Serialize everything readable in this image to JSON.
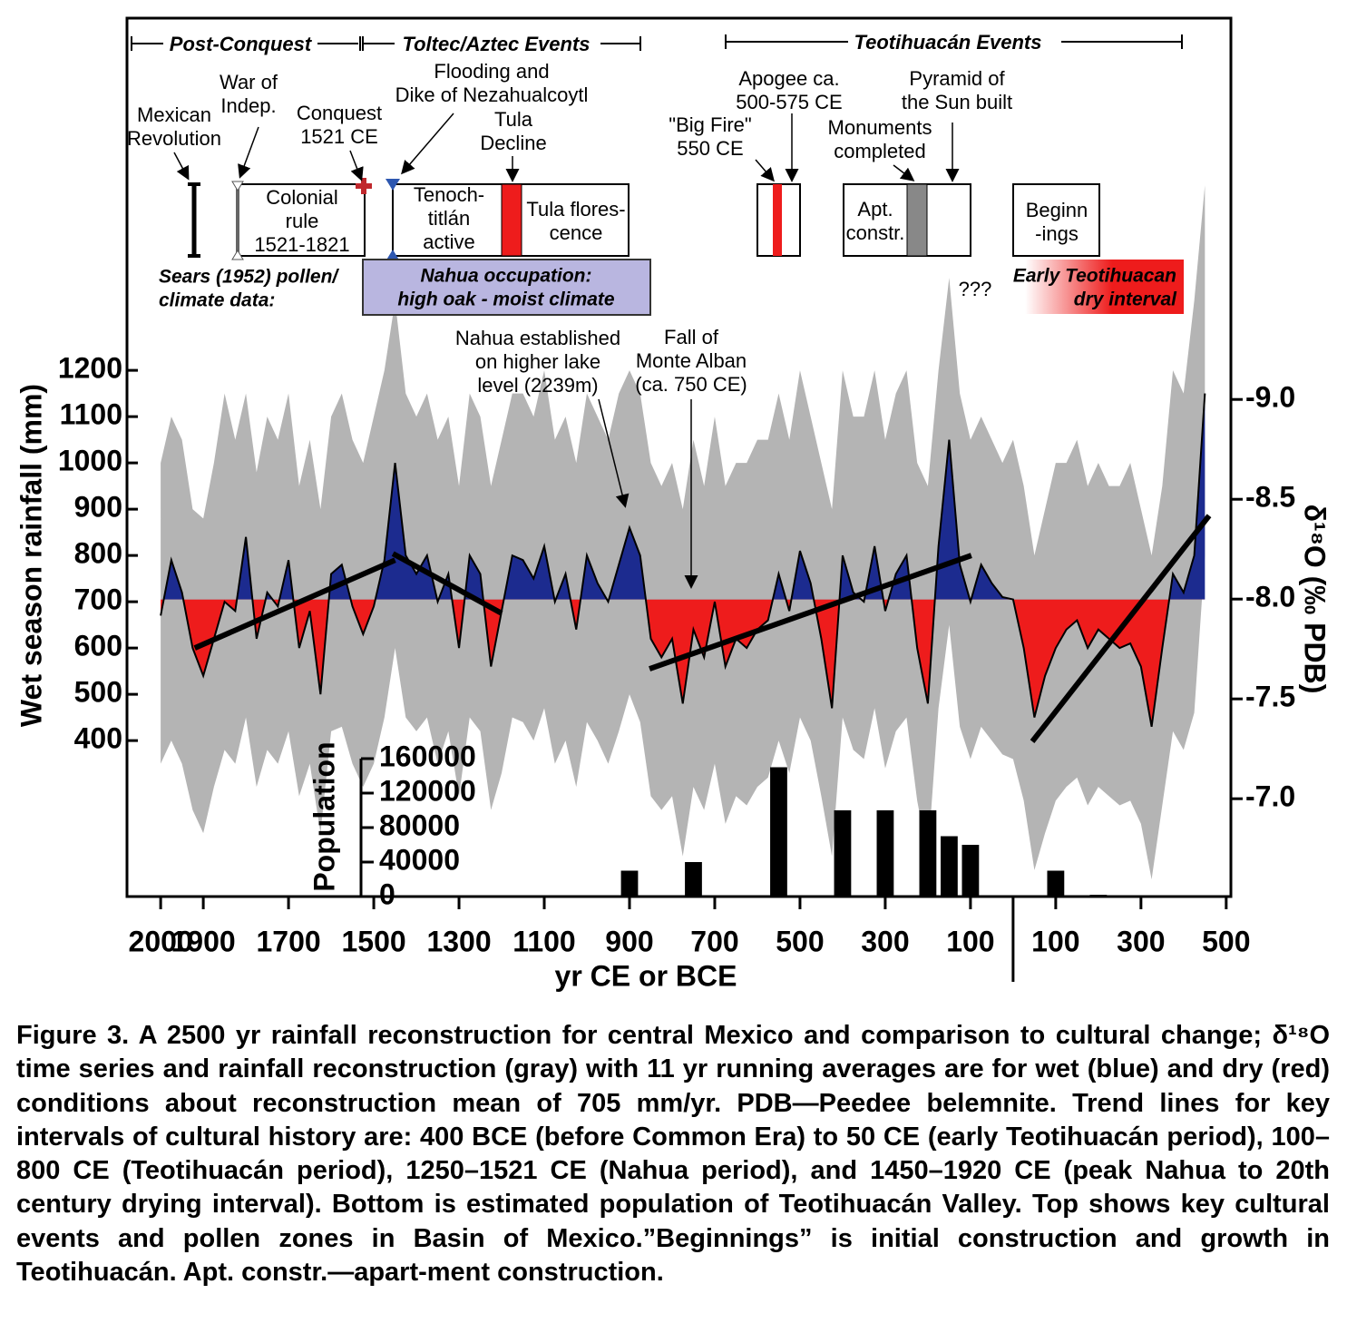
{
  "caption": "Figure 3. A 2500 yr rainfall reconstruction for central Mexico and comparison to cultural change; δ¹⁸O time series and rainfall reconstruction (gray) with 11 yr running averages are for wet (blue) and dry (red) conditions about reconstruction mean of 705 mm/yr. PDB—Peedee belemnite. Trend lines for key intervals of cultural history are: 400 BCE (before Common Era) to 50 CE (early Teotihuacán period), 100–800 CE (Teotihuacán period), 1250–1521 CE (Nahua period), and 1450–1920 CE (peak Nahua to 20th century drying interval). Bottom is estimated population of Teotihuacán Valley. Top shows key cultural events and pollen zones in Basin of Mexico.”Beginnings” is initial construction and growth in Teotihuacán. Apt. constr.—apart-ment construction.",
  "chart_data": [
    {
      "type": "area",
      "xlabel": "yr CE or BCE",
      "ylabel": "Wet season rainfall (mm)",
      "y2label": "δ¹⁸O (‰ PDB)",
      "xlim": [
        2079,
        -511
      ],
      "xticks": [
        2000,
        1900,
        1700,
        1500,
        1300,
        1100,
        900,
        700,
        500,
        300,
        100,
        {
          "value": -100,
          "label": "100"
        },
        {
          "value": -300,
          "label": "300"
        },
        {
          "value": -500,
          "label": "500"
        }
      ],
      "ylim": [
        63,
        1961
      ],
      "yticks": [
        400,
        500,
        600,
        700,
        800,
        900,
        1000,
        1100,
        1200
      ],
      "y2lim": [
        -6.51,
        -10.91
      ],
      "y2ticks": [
        {
          "value": -9.0,
          "label": "-9.0"
        },
        -8.5,
        {
          "value": -8.0,
          "label": "-8.0"
        },
        -7.5,
        {
          "value": -7.0,
          "label": "-7.0"
        }
      ],
      "baseline": 705,
      "wet_color": "#1c2b8f",
      "dry_color": "#ee1c1c",
      "x": [
        2000,
        1975,
        1950,
        1925,
        1900,
        1875,
        1850,
        1825,
        1800,
        1775,
        1750,
        1725,
        1700,
        1675,
        1650,
        1625,
        1600,
        1575,
        1550,
        1525,
        1500,
        1475,
        1450,
        1425,
        1400,
        1375,
        1350,
        1325,
        1300,
        1275,
        1250,
        1225,
        1200,
        1175,
        1150,
        1125,
        1100,
        1075,
        1050,
        1025,
        1000,
        975,
        950,
        925,
        900,
        875,
        850,
        825,
        800,
        775,
        750,
        725,
        700,
        675,
        650,
        625,
        600,
        575,
        550,
        525,
        500,
        475,
        450,
        425,
        400,
        375,
        350,
        325,
        300,
        275,
        250,
        225,
        200,
        175,
        150,
        125,
        100,
        75,
        50,
        25,
        0,
        -25,
        -50,
        -75,
        -100,
        -125,
        -150,
        -175,
        -200,
        -225,
        -250,
        -275,
        -300,
        -325,
        -350,
        -375,
        -400,
        -425,
        -450
      ],
      "values": [
        670,
        790,
        720,
        600,
        540,
        620,
        700,
        680,
        840,
        620,
        720,
        690,
        790,
        600,
        680,
        500,
        760,
        780,
        690,
        630,
        690,
        790,
        1000,
        800,
        760,
        800,
        700,
        760,
        600,
        800,
        760,
        560,
        680,
        800,
        790,
        750,
        820,
        700,
        760,
        640,
        800,
        740,
        700,
        780,
        860,
        800,
        620,
        580,
        620,
        480,
        640,
        580,
        700,
        560,
        620,
        600,
        640,
        660,
        760,
        680,
        810,
        740,
        620,
        470,
        800,
        720,
        700,
        820,
        680,
        760,
        800,
        600,
        480,
        820,
        1050,
        780,
        700,
        780,
        740,
        710,
        705,
        600,
        450,
        540,
        600,
        640,
        660,
        600,
        640,
        620,
        600,
        610,
        560,
        430,
        600,
        760,
        720,
        800,
        1150
      ],
      "band": {
        "color": "#b4b4b4",
        "upper": [
          1000,
          1100,
          1050,
          900,
          880,
          1000,
          1150,
          1050,
          1150,
          980,
          1100,
          1050,
          1150,
          950,
          1050,
          900,
          1100,
          1150,
          1050,
          1000,
          1100,
          1200,
          1350,
          1150,
          1100,
          1150,
          1050,
          1100,
          950,
          1150,
          1100,
          950,
          1050,
          1150,
          1150,
          1100,
          1200,
          1050,
          1100,
          1000,
          1150,
          1100,
          1050,
          1150,
          1200,
          1150,
          1000,
          950,
          1000,
          900,
          1050,
          950,
          1100,
          950,
          1000,
          1000,
          1050,
          1050,
          1150,
          1050,
          1200,
          1100,
          1000,
          900,
          1200,
          1100,
          1100,
          1200,
          1050,
          1150,
          1200,
          1000,
          950,
          1200,
          1400,
          1150,
          1050,
          1100,
          1050,
          1000,
          1050,
          950,
          800,
          900,
          1000,
          1000,
          1050,
          950,
          1000,
          950,
          950,
          1000,
          900,
          800,
          950,
          1200,
          1150,
          1350,
          1600
        ],
        "lower": [
          350,
          400,
          350,
          250,
          200,
          300,
          380,
          350,
          450,
          300,
          380,
          350,
          420,
          280,
          350,
          200,
          420,
          430,
          350,
          300,
          350,
          450,
          600,
          450,
          420,
          450,
          350,
          420,
          280,
          450,
          420,
          250,
          330,
          450,
          440,
          400,
          470,
          350,
          400,
          300,
          440,
          400,
          350,
          420,
          500,
          440,
          280,
          250,
          280,
          150,
          300,
          250,
          350,
          220,
          280,
          260,
          300,
          320,
          400,
          330,
          450,
          400,
          280,
          150,
          450,
          380,
          360,
          470,
          340,
          420,
          450,
          270,
          150,
          470,
          650,
          430,
          360,
          430,
          400,
          370,
          360,
          270,
          120,
          200,
          270,
          300,
          320,
          260,
          300,
          280,
          260,
          270,
          220,
          100,
          260,
          420,
          380,
          460,
          800
        ]
      },
      "trend_lines": [
        {
          "x": [
            1920,
            1450
          ],
          "values": [
            600,
            790
          ]
        },
        {
          "x": [
            1455,
            1200
          ],
          "values": [
            804,
            675
          ]
        },
        {
          "x": [
            853,
            98
          ],
          "values": [
            555,
            800
          ]
        },
        {
          "x": [
            -45,
            -460
          ],
          "values": [
            398,
            886
          ]
        }
      ],
      "annotations": [
        [
          "Post-Conquest"
        ],
        [
          "Toltec/Aztec Events"
        ],
        [
          "Teotihuacán Events"
        ],
        [
          "Mexican",
          "Revolution"
        ],
        [
          "War of",
          "Indep."
        ],
        [
          "Conquest",
          "1521 CE"
        ],
        [
          "Flooding and",
          "Dike of Nezahualcoytl"
        ],
        [
          "Tula",
          "Decline"
        ],
        [
          "Colonial",
          "rule",
          "1521-1821"
        ],
        [
          "Tenoch-",
          "titlán",
          "active"
        ],
        [
          "Tula flores-",
          "cence"
        ],
        [
          "Apogee ca.",
          "500-575 CE"
        ],
        [
          "\"Big Fire\"",
          "550 CE"
        ],
        [
          "Pyramid of",
          "the Sun built"
        ],
        [
          "Monuments",
          "completed"
        ],
        [
          "Apt.",
          "constr."
        ],
        [
          "Beginn",
          "-ings"
        ],
        [
          "Sears (1952) pollen/",
          "climate data:"
        ],
        [
          "Nahua occupation:",
          "high oak - moist climate"
        ],
        [
          "???"
        ],
        [
          "Early Teotihuacan",
          "dry interval"
        ],
        [
          "Nahua established",
          "on higher lake",
          "level (2239m)"
        ],
        [
          "Fall of",
          "Monte Alban",
          "(ca. 750 CE)"
        ]
      ]
    },
    {
      "type": "bar",
      "ylabel": "Population",
      "ylim": [
        0,
        160000
      ],
      "yticks": [
        0,
        40000,
        80000,
        120000,
        160000
      ],
      "color": "#000000",
      "x": [
        900,
        750,
        550,
        400,
        300,
        200,
        150,
        100,
        -100,
        -200
      ],
      "values": [
        30000,
        40000,
        150000,
        100000,
        100000,
        100000,
        70000,
        60000,
        30000,
        2000
      ]
    }
  ]
}
